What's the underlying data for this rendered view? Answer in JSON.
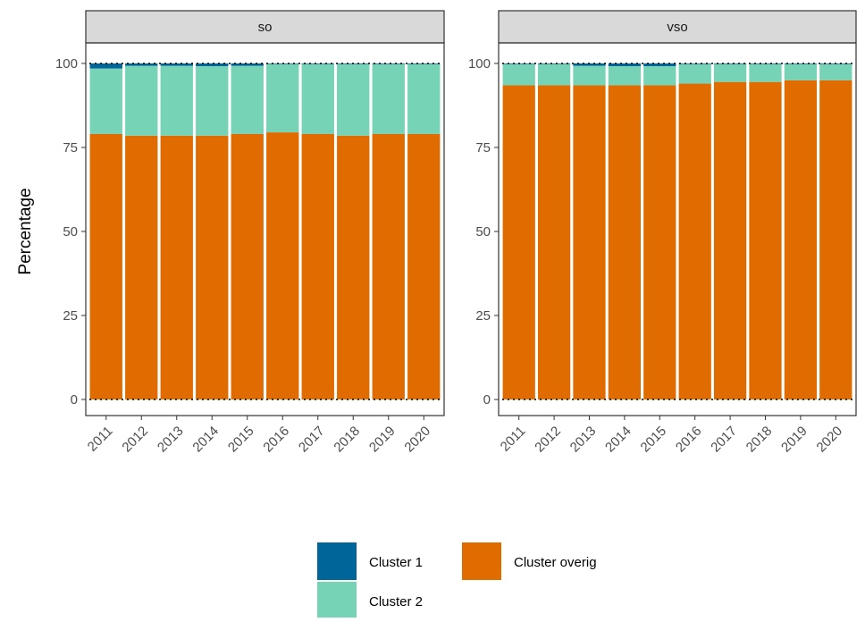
{
  "chart_data": {
    "type": "bar",
    "stacked": true,
    "ylabel": "Percentage",
    "xlabel": "",
    "ylim": [
      0,
      100
    ],
    "yticks": [
      0,
      25,
      50,
      75,
      100
    ],
    "categories": [
      "2011",
      "2012",
      "2013",
      "2014",
      "2015",
      "2016",
      "2017",
      "2018",
      "2019",
      "2020"
    ],
    "grid": false,
    "legend_position": "bottom",
    "colors": {
      "Cluster 1": "#006699",
      "Cluster 2": "#76D3B6",
      "Cluster overig": "#E06C00"
    },
    "legend": [
      {
        "name": "Cluster 1"
      },
      {
        "name": "Cluster overig"
      },
      {
        "name": "Cluster 2"
      }
    ],
    "panels": [
      {
        "label": "so",
        "series": [
          {
            "name": "Cluster overig",
            "values": [
              79,
              78.5,
              78.5,
              78.5,
              79,
              79.5,
              79,
              78.5,
              79,
              79
            ]
          },
          {
            "name": "Cluster 2",
            "values": [
              19.5,
              20.8,
              20.8,
              20.7,
              20.3,
              20.3,
              20.8,
              21.3,
              20.8,
              20.8
            ]
          },
          {
            "name": "Cluster 1",
            "values": [
              1.5,
              0.7,
              0.7,
              0.8,
              0.7,
              0.2,
              0.2,
              0.2,
              0.2,
              0.2
            ]
          }
        ]
      },
      {
        "label": "vso",
        "series": [
          {
            "name": "Cluster overig",
            "values": [
              93.5,
              93.5,
              93.5,
              93.5,
              93.5,
              94,
              94.5,
              94.5,
              95,
              95
            ]
          },
          {
            "name": "Cluster 2",
            "values": [
              6.3,
              6.3,
              5.8,
              5.7,
              5.7,
              5.8,
              5.3,
              5.3,
              4.8,
              4.8
            ]
          },
          {
            "name": "Cluster 1",
            "values": [
              0.2,
              0.2,
              0.7,
              0.8,
              0.8,
              0.2,
              0.2,
              0.2,
              0.2,
              0.2
            ]
          }
        ]
      }
    ]
  }
}
